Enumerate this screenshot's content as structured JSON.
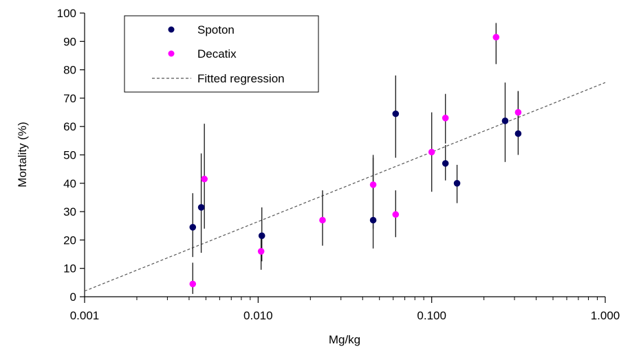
{
  "chart_data": {
    "type": "scatter",
    "xlabel": "Mg/kg",
    "ylabel": "Mortality (%)",
    "x_scale": "log",
    "xlim": [
      0.001,
      1.0
    ],
    "ylim": [
      0,
      100
    ],
    "x_ticks": [
      "0.001",
      "0.010",
      "0.100",
      "1.000"
    ],
    "y_ticks": [
      "0",
      "10",
      "20",
      "30",
      "40",
      "50",
      "60",
      "70",
      "80",
      "90",
      "100"
    ],
    "grid": false,
    "legend_position": "top-left",
    "series": [
      {
        "name": "Spoton",
        "color": "#000066",
        "points": [
          {
            "x": 0.0042,
            "y": 24.5,
            "low": 14,
            "high": 36.5
          },
          {
            "x": 0.0047,
            "y": 31.5,
            "low": 15.5,
            "high": 50.5
          },
          {
            "x": 0.0105,
            "y": 21.5,
            "low": 12.5,
            "high": 31.5
          },
          {
            "x": 0.046,
            "y": 27,
            "low": 17,
            "high": 50
          },
          {
            "x": 0.062,
            "y": 64.5,
            "low": 49,
            "high": 78
          },
          {
            "x": 0.12,
            "y": 47,
            "low": 41,
            "high": 53.5
          },
          {
            "x": 0.14,
            "y": 40,
            "low": 33,
            "high": 46.5
          },
          {
            "x": 0.265,
            "y": 62,
            "low": 47.5,
            "high": 75.5
          },
          {
            "x": 0.315,
            "y": 57.5,
            "low": 50,
            "high": 72.5
          }
        ]
      },
      {
        "name": "Decatix",
        "color": "#ff00ff",
        "points": [
          {
            "x": 0.0042,
            "y": 4.5,
            "low": 1,
            "high": 12
          },
          {
            "x": 0.0049,
            "y": 41.5,
            "low": 24,
            "high": 61
          },
          {
            "x": 0.0104,
            "y": 16,
            "low": 9.5,
            "high": 22
          },
          {
            "x": 0.0235,
            "y": 27,
            "low": 18,
            "high": 37.5
          },
          {
            "x": 0.046,
            "y": 39.5,
            "low": 24,
            "high": 49
          },
          {
            "x": 0.062,
            "y": 29,
            "low": 21,
            "high": 37.5
          },
          {
            "x": 0.1,
            "y": 51,
            "low": 37,
            "high": 65
          },
          {
            "x": 0.12,
            "y": 63,
            "low": 54,
            "high": 71.5
          },
          {
            "x": 0.235,
            "y": 91.5,
            "low": 82,
            "high": 96.5
          },
          {
            "x": 0.315,
            "y": 65,
            "low": 57,
            "high": 72.5
          }
        ]
      }
    ],
    "regression": {
      "name": "Fitted regression",
      "style": "dashed",
      "color": "#555555",
      "from": {
        "x": 0.001,
        "y": 2
      },
      "to": {
        "x": 1.0,
        "y": 75.5
      }
    }
  }
}
